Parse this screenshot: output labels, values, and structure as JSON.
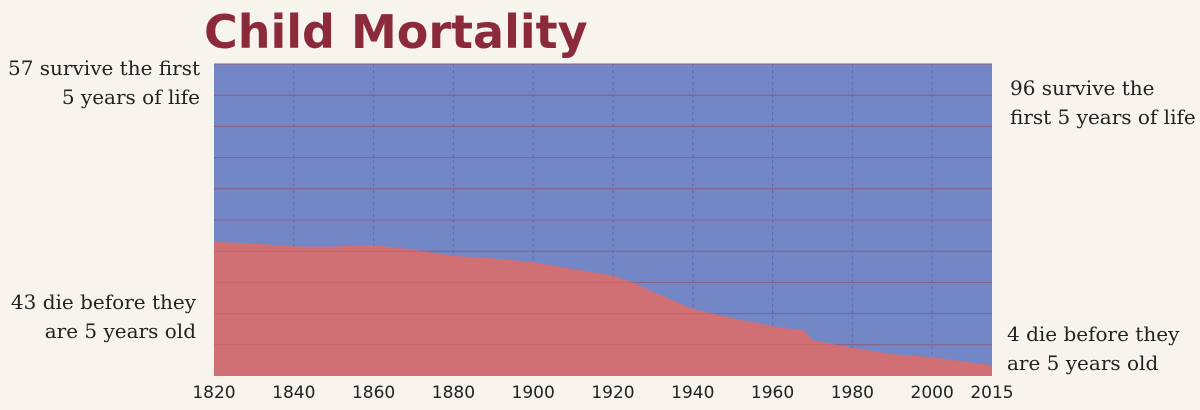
{
  "chart_data": {
    "type": "area",
    "title": "Child Mortality",
    "xlabel": "",
    "ylabel": "",
    "ylim": [
      0,
      100
    ],
    "xlim": [
      1820,
      2015
    ],
    "x_ticks": [
      1820,
      1840,
      1860,
      1880,
      1900,
      1920,
      1940,
      1960,
      1980,
      2000,
      2015
    ],
    "grid": true,
    "series": [
      {
        "name": "",
        "color": "#d07074",
        "x": [
          1820,
          1830,
          1840,
          1850,
          1860,
          1870,
          1880,
          1890,
          1900,
          1910,
          1920,
          1925,
          1930,
          1940,
          1950,
          1960,
          1965,
          1968,
          1970,
          1980,
          1990,
          2000,
          2010,
          2015
        ],
        "y": [
          43.0,
          42.5,
          41.5,
          41.5,
          42.0,
          40.5,
          38.5,
          37.7,
          36.5,
          34.3,
          32.2,
          30.0,
          27.0,
          21.5,
          18.5,
          16.0,
          15.0,
          14.6,
          11.5,
          9.1,
          7.0,
          6.0,
          4.3,
          3.5
        ]
      },
      {
        "name": "",
        "color": "#7386c5",
        "stacked_to": 100
      }
    ],
    "annotations": {
      "left_top": [
        "57 survive the first",
        "5 years of life"
      ],
      "left_bottom": [
        "43 die before they",
        "are 5 years old"
      ],
      "right_top": [
        "96 survive the",
        "first 5 years of life"
      ],
      "right_bottom": [
        "4 die before they",
        "are 5 years old"
      ]
    }
  }
}
